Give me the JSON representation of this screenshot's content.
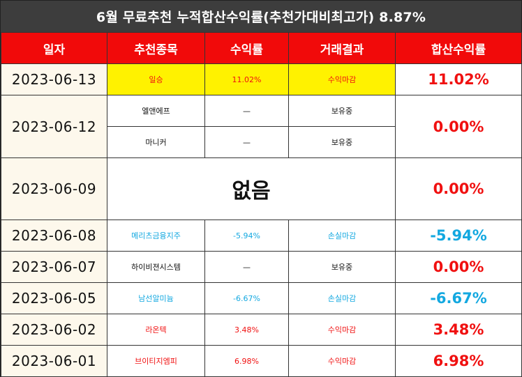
{
  "title": "6월 무료추천 누적합산수익률(추천가대비최고가) 8.87%",
  "headers": [
    "일자",
    "추천종목",
    "수익률",
    "거래결과",
    "합산수익률"
  ],
  "rows": [
    {
      "date": "2023-06-13",
      "total": "11.02%",
      "items": [
        {
          "name": "일승",
          "rate": "11.02%",
          "result": "수익마감"
        }
      ]
    },
    {
      "date": "2023-06-12",
      "total": "0.00%",
      "items": [
        {
          "name": "엘앤에프",
          "rate": "—",
          "result": "보유중"
        },
        {
          "name": "마니커",
          "rate": "—",
          "result": "보유중"
        }
      ]
    },
    {
      "date": "2023-06-09",
      "total": "0.00%",
      "none_text": "없음"
    },
    {
      "date": "2023-06-08",
      "total": "-5.94%",
      "items": [
        {
          "name": "메리츠금융지주",
          "rate": "-5.94%",
          "result": "손실마감"
        }
      ]
    },
    {
      "date": "2023-06-07",
      "total": "0.00%",
      "items": [
        {
          "name": "하이비젼시스템",
          "rate": "—",
          "result": "보유중"
        }
      ]
    },
    {
      "date": "2023-06-05",
      "total": "-6.67%",
      "items": [
        {
          "name": "남선알미늄",
          "rate": "-6.67%",
          "result": "손실마감"
        }
      ]
    },
    {
      "date": "2023-06-02",
      "total": "3.48%",
      "items": [
        {
          "name": "라온텍",
          "rate": "3.48%",
          "result": "수익마감"
        }
      ]
    },
    {
      "date": "2023-06-01",
      "total": "6.98%",
      "items": [
        {
          "name": "브이티지엠피",
          "rate": "6.98%",
          "result": "수익마감"
        }
      ]
    }
  ],
  "colors": {
    "header_red": "#f10a0a",
    "title_bg": "#3d3d3d",
    "profit": "#f01010",
    "loss": "#13a8e0",
    "highlight": "#fff200",
    "date_bg": "#fdf8ec"
  }
}
